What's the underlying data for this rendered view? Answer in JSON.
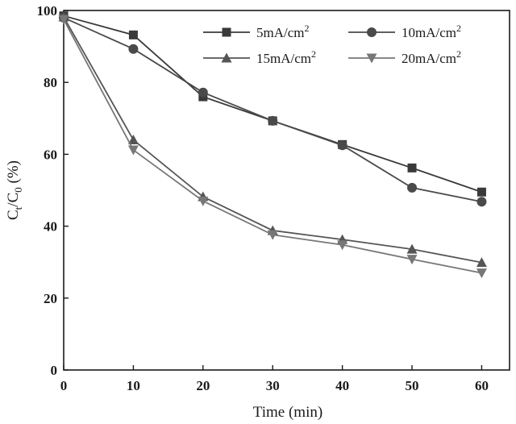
{
  "chart_data": {
    "type": "line",
    "title": "",
    "xlabel": "Time (min)",
    "ylabel": {
      "base": "C",
      "sub1": "t",
      "mid": "/C",
      "sub2": "0",
      "tail": " (%)"
    },
    "x": [
      0,
      10,
      20,
      30,
      40,
      50,
      60
    ],
    "xlim": [
      0,
      64
    ],
    "ylim": [
      0,
      100
    ],
    "xticks": [
      0,
      10,
      20,
      30,
      40,
      50,
      60
    ],
    "yticks": [
      0,
      20,
      40,
      60,
      80,
      100
    ],
    "grid": false,
    "legend_position": "top-right",
    "series": [
      {
        "name": "5mA/cm",
        "sup": "2",
        "marker": "square",
        "color": "#3a3a3a",
        "values": [
          98.5,
          93.2,
          76.0,
          69.3,
          62.7,
          56.2,
          49.5
        ]
      },
      {
        "name": "10mA/cm",
        "sup": "2",
        "marker": "circle",
        "color": "#4a4a4a",
        "values": [
          98.0,
          89.3,
          77.2,
          69.3,
          62.5,
          50.7,
          46.8
        ]
      },
      {
        "name": "15mA/cm",
        "sup": "2",
        "marker": "triangle-up",
        "color": "#555555",
        "values": [
          98.2,
          64.0,
          48.2,
          38.8,
          36.3,
          33.6,
          29.9
        ]
      },
      {
        "name": "20mA/cm",
        "sup": "2",
        "marker": "triangle-down",
        "color": "#777777",
        "values": [
          97.5,
          61.2,
          47.0,
          37.6,
          34.8,
          30.8,
          27.0
        ]
      }
    ]
  }
}
